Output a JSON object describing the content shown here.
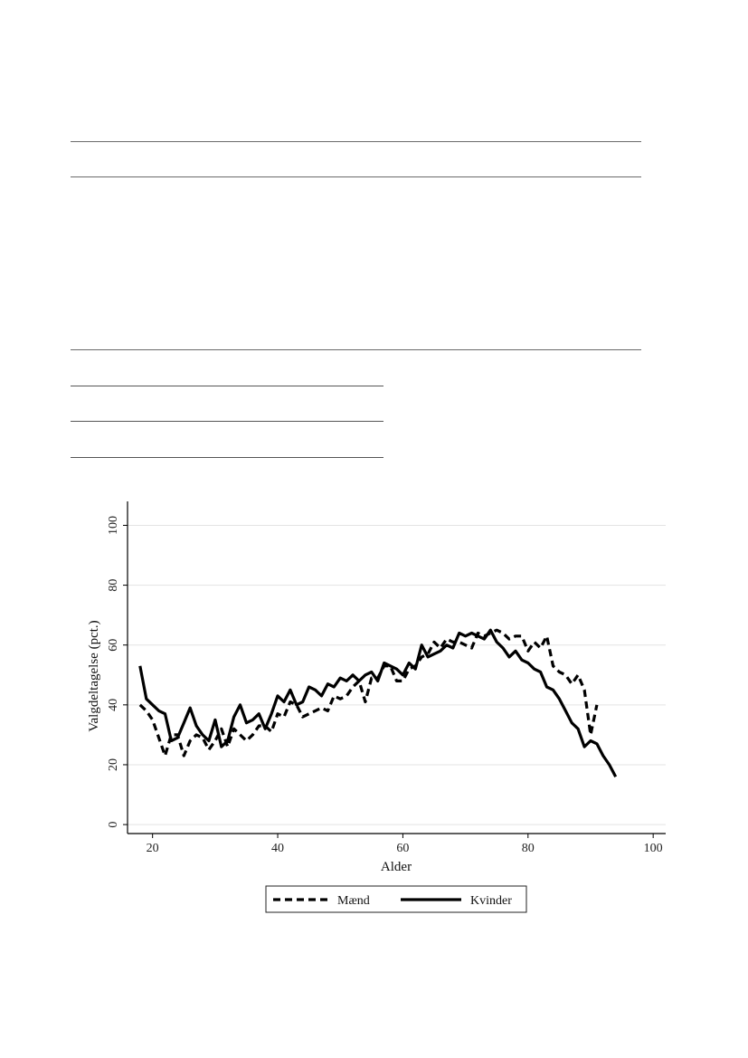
{
  "chart_data": {
    "type": "line",
    "xlabel": "Alder",
    "ylabel": "Valgdeltagelse (pct.)",
    "xlim": [
      16,
      102
    ],
    "ylim": [
      -3,
      108
    ],
    "xticks": [
      20,
      40,
      60,
      80,
      100
    ],
    "yticks": [
      0,
      20,
      40,
      60,
      80,
      100
    ],
    "grid": "horizontal",
    "legend_position": "bottom",
    "series": [
      {
        "name": "Mænd",
        "style": "dashed",
        "color": "#000000",
        "points": [
          [
            18,
            40
          ],
          [
            19,
            38
          ],
          [
            20,
            35
          ],
          [
            21,
            29
          ],
          [
            22,
            23
          ],
          [
            23,
            30
          ],
          [
            24,
            30
          ],
          [
            25,
            23
          ],
          [
            26,
            28
          ],
          [
            27,
            30
          ],
          [
            28,
            29
          ],
          [
            29,
            25
          ],
          [
            30,
            28
          ],
          [
            31,
            32
          ],
          [
            32,
            26
          ],
          [
            33,
            32
          ],
          [
            34,
            30
          ],
          [
            35,
            28
          ],
          [
            36,
            30
          ],
          [
            37,
            33
          ],
          [
            38,
            33
          ],
          [
            39,
            31
          ],
          [
            40,
            37
          ],
          [
            41,
            36
          ],
          [
            42,
            41
          ],
          [
            43,
            40
          ],
          [
            44,
            36
          ],
          [
            45,
            37
          ],
          [
            46,
            38
          ],
          [
            47,
            39
          ],
          [
            48,
            38
          ],
          [
            49,
            43
          ],
          [
            50,
            42
          ],
          [
            51,
            43
          ],
          [
            52,
            46
          ],
          [
            53,
            48
          ],
          [
            54,
            41
          ],
          [
            55,
            49
          ],
          [
            56,
            49
          ],
          [
            57,
            53
          ],
          [
            58,
            53
          ],
          [
            59,
            48
          ],
          [
            60,
            48
          ],
          [
            61,
            52
          ],
          [
            62,
            53
          ],
          [
            63,
            56
          ],
          [
            64,
            57
          ],
          [
            65,
            61
          ],
          [
            66,
            59
          ],
          [
            67,
            62
          ],
          [
            68,
            61
          ],
          [
            69,
            61
          ],
          [
            70,
            60
          ],
          [
            71,
            59
          ],
          [
            72,
            64
          ],
          [
            73,
            63
          ],
          [
            74,
            64
          ],
          [
            75,
            65
          ],
          [
            76,
            64
          ],
          [
            77,
            62
          ],
          [
            78,
            63
          ],
          [
            79,
            63
          ],
          [
            80,
            58
          ],
          [
            81,
            61
          ],
          [
            82,
            59
          ],
          [
            83,
            63
          ],
          [
            84,
            53
          ],
          [
            85,
            51
          ],
          [
            86,
            50
          ],
          [
            87,
            47
          ],
          [
            88,
            50
          ],
          [
            89,
            45
          ],
          [
            90,
            30
          ],
          [
            91,
            40
          ]
        ]
      },
      {
        "name": "Kvinder",
        "style": "solid",
        "color": "#000000",
        "points": [
          [
            18,
            53
          ],
          [
            19,
            42
          ],
          [
            20,
            40
          ],
          [
            21,
            38
          ],
          [
            22,
            37
          ],
          [
            23,
            28
          ],
          [
            24,
            29
          ],
          [
            25,
            34
          ],
          [
            26,
            39
          ],
          [
            27,
            33
          ],
          [
            28,
            30
          ],
          [
            29,
            28
          ],
          [
            30,
            35
          ],
          [
            31,
            26
          ],
          [
            32,
            28
          ],
          [
            33,
            36
          ],
          [
            34,
            40
          ],
          [
            35,
            34
          ],
          [
            36,
            35
          ],
          [
            37,
            37
          ],
          [
            38,
            32
          ],
          [
            39,
            37
          ],
          [
            40,
            43
          ],
          [
            41,
            41
          ],
          [
            42,
            45
          ],
          [
            43,
            40
          ],
          [
            44,
            41
          ],
          [
            45,
            46
          ],
          [
            46,
            45
          ],
          [
            47,
            43
          ],
          [
            48,
            47
          ],
          [
            49,
            46
          ],
          [
            50,
            49
          ],
          [
            51,
            48
          ],
          [
            52,
            50
          ],
          [
            53,
            48
          ],
          [
            54,
            50
          ],
          [
            55,
            51
          ],
          [
            56,
            48
          ],
          [
            57,
            54
          ],
          [
            58,
            53
          ],
          [
            59,
            52
          ],
          [
            60,
            50
          ],
          [
            61,
            54
          ],
          [
            62,
            52
          ],
          [
            63,
            60
          ],
          [
            64,
            56
          ],
          [
            65,
            57
          ],
          [
            66,
            58
          ],
          [
            67,
            60
          ],
          [
            68,
            59
          ],
          [
            69,
            64
          ],
          [
            70,
            63
          ],
          [
            71,
            64
          ],
          [
            72,
            63
          ],
          [
            73,
            62
          ],
          [
            74,
            65
          ],
          [
            75,
            61
          ],
          [
            76,
            59
          ],
          [
            77,
            56
          ],
          [
            78,
            58
          ],
          [
            79,
            55
          ],
          [
            80,
            54
          ],
          [
            81,
            52
          ],
          [
            82,
            51
          ],
          [
            83,
            46
          ],
          [
            84,
            45
          ],
          [
            85,
            42
          ],
          [
            86,
            38
          ],
          [
            87,
            34
          ],
          [
            88,
            32
          ],
          [
            89,
            26
          ],
          [
            90,
            28
          ],
          [
            91,
            27
          ],
          [
            92,
            23
          ],
          [
            93,
            20
          ],
          [
            94,
            16
          ]
        ]
      }
    ]
  }
}
